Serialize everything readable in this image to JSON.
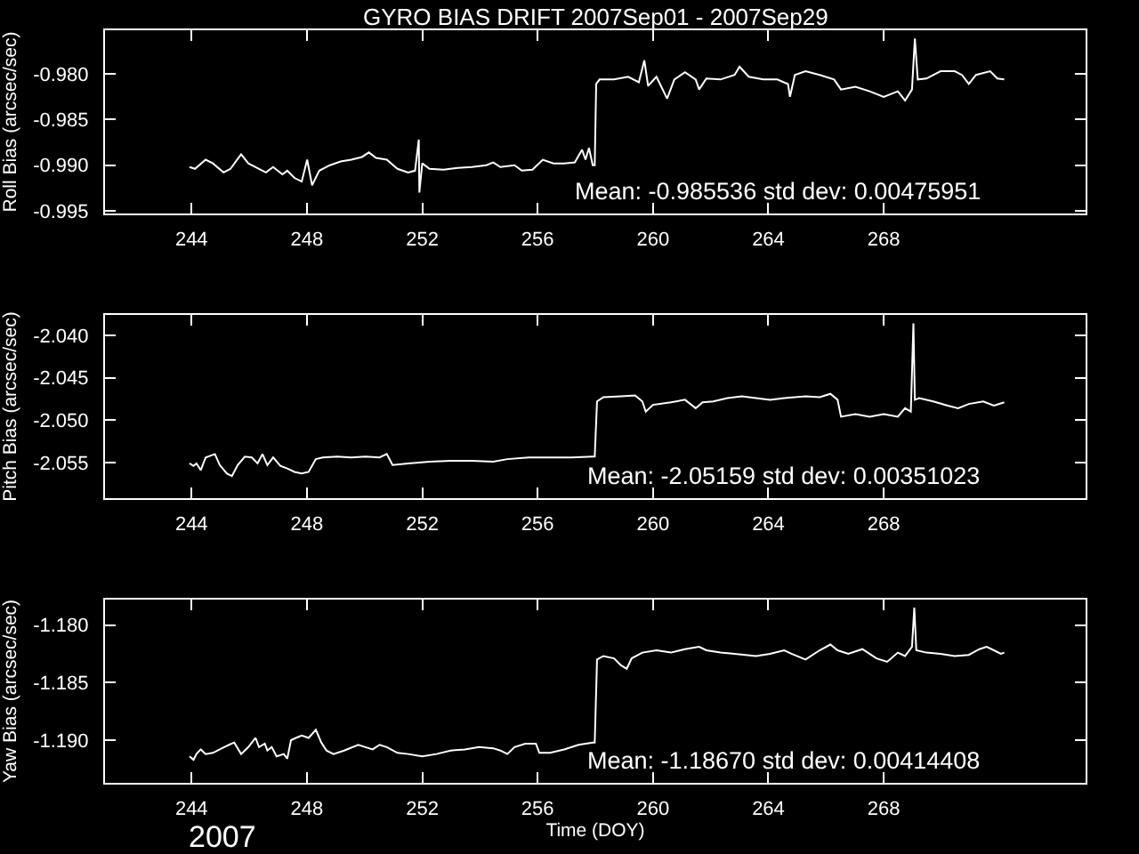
{
  "chart_data": [
    {
      "type": "line",
      "title": "GYRO BIAS DRIFT 2007Sep01 - 2007Sep29",
      "ylabel": "Roll Bias (arcsec/sec)",
      "x": [
        243.93,
        244.12,
        244.49,
        244.74,
        245.11,
        245.35,
        245.72,
        245.97,
        246.34,
        246.58,
        246.83,
        247.15,
        247.32,
        247.57,
        247.82,
        248.01,
        248.18,
        248.43,
        248.8,
        249.17,
        249.54,
        249.91,
        250.15,
        250.4,
        250.77,
        251.14,
        251.51,
        251.75,
        251.88,
        251.9,
        252.0,
        252.25,
        252.74,
        253.23,
        253.72,
        254.22,
        254.46,
        254.71,
        255.2,
        255.45,
        255.82,
        256.18,
        256.55,
        256.92,
        257.29,
        257.54,
        257.66,
        257.78,
        257.91,
        257.98,
        258.03,
        258.15,
        258.65,
        259.14,
        259.51,
        259.7,
        259.83,
        260.12,
        260.49,
        260.74,
        261.11,
        261.48,
        261.6,
        261.85,
        262.34,
        262.83,
        263.0,
        263.32,
        263.82,
        264.31,
        264.68,
        264.75,
        264.92,
        265.29,
        265.78,
        266.28,
        266.52,
        267.02,
        267.51,
        268.0,
        268.49,
        268.74,
        268.98,
        269.08,
        269.18,
        269.48,
        269.97,
        270.46,
        270.71,
        270.95,
        271.2,
        271.69,
        271.94,
        272.18
      ],
      "series": [
        {
          "color": "#ffffff",
          "values": [
            -0.9902,
            -0.9904,
            -0.9894,
            -0.9898,
            -0.9908,
            -0.9904,
            -0.9888,
            -0.9898,
            -0.9904,
            -0.9908,
            -0.9902,
            -0.991,
            -0.9906,
            -0.9914,
            -0.9918,
            -0.9894,
            -0.9922,
            -0.9906,
            -0.99,
            -0.9896,
            -0.9894,
            -0.9891,
            -0.9886,
            -0.9892,
            -0.9894,
            -0.9904,
            -0.9908,
            -0.9906,
            -0.9872,
            -0.993,
            -0.9898,
            -0.9904,
            -0.9905,
            -0.9903,
            -0.9902,
            -0.99,
            -0.9897,
            -0.9902,
            -0.99,
            -0.9906,
            -0.9905,
            -0.9894,
            -0.9898,
            -0.9898,
            -0.9897,
            -0.9883,
            -0.9894,
            -0.9881,
            -0.99,
            -0.99,
            -0.9811,
            -0.9806,
            -0.9806,
            -0.9803,
            -0.9809,
            -0.9785,
            -0.9813,
            -0.9803,
            -0.9827,
            -0.9806,
            -0.9798,
            -0.9806,
            -0.9817,
            -0.9805,
            -0.9806,
            -0.9801,
            -0.9792,
            -0.9803,
            -0.9806,
            -0.9806,
            -0.9811,
            -0.9825,
            -0.9801,
            -0.9797,
            -0.9801,
            -0.9806,
            -0.9817,
            -0.9814,
            -0.9819,
            -0.9825,
            -0.9819,
            -0.9829,
            -0.9817,
            -0.9761,
            -0.9806,
            -0.9805,
            -0.9797,
            -0.9797,
            -0.9801,
            -0.9811,
            -0.9801,
            -0.9797,
            -0.9805,
            -0.9806
          ]
        }
      ],
      "xlim": [
        241,
        275
      ],
      "xticks": [
        244,
        248,
        252,
        256,
        260,
        264,
        268
      ],
      "ylim": [
        -0.9953,
        -0.9752
      ],
      "yticks": [
        {
          "value": -0.995,
          "label": "-0.995"
        },
        {
          "value": -0.99,
          "label": "-0.990"
        },
        {
          "value": -0.985,
          "label": "-0.985"
        },
        {
          "value": -0.98,
          "label": "-0.980"
        }
      ],
      "annotations": [
        "Mean: -0.985536 std dev: 0.00475951"
      ]
    },
    {
      "type": "line",
      "ylabel": "Pitch Bias (arcsec/sec)",
      "x": [
        243.93,
        244.07,
        244.17,
        244.32,
        244.49,
        244.81,
        244.98,
        245.23,
        245.4,
        245.6,
        245.85,
        246.09,
        246.29,
        246.46,
        246.63,
        246.83,
        247.08,
        247.32,
        247.57,
        247.82,
        248.06,
        248.31,
        248.55,
        249.05,
        249.54,
        250.03,
        250.52,
        250.77,
        250.97,
        251.51,
        252.25,
        252.98,
        253.72,
        254.46,
        254.95,
        255.69,
        256.43,
        257.17,
        257.91,
        257.98,
        258.06,
        258.28,
        258.89,
        259.38,
        259.63,
        259.75,
        260.0,
        260.62,
        261.11,
        261.48,
        261.72,
        262.09,
        262.58,
        263.08,
        263.57,
        264.06,
        264.55,
        265.29,
        265.78,
        266.15,
        266.4,
        266.52,
        267.02,
        267.51,
        268.0,
        268.49,
        268.74,
        268.94,
        269.03,
        269.08,
        269.23,
        269.72,
        270.22,
        270.58,
        270.95,
        271.45,
        271.82,
        272.18
      ],
      "series": [
        {
          "color": "#ffffff",
          "values": [
            -2.0551,
            -2.0554,
            -2.0551,
            -2.0559,
            -2.0544,
            -2.054,
            -2.0553,
            -2.0563,
            -2.0566,
            -2.0553,
            -2.0543,
            -2.0544,
            -2.0551,
            -2.054,
            -2.0553,
            -2.0544,
            -2.0554,
            -2.0557,
            -2.0561,
            -2.0563,
            -2.0561,
            -2.0546,
            -2.0544,
            -2.0543,
            -2.0544,
            -2.0543,
            -2.0544,
            -2.054,
            -2.0553,
            -2.0551,
            -2.0549,
            -2.0548,
            -2.0548,
            -2.0549,
            -2.0546,
            -2.0544,
            -2.0544,
            -2.0544,
            -2.0543,
            -2.0543,
            -2.0478,
            -2.0473,
            -2.0472,
            -2.0471,
            -2.0478,
            -2.049,
            -2.0482,
            -2.0479,
            -2.0476,
            -2.0486,
            -2.0479,
            -2.0478,
            -2.0474,
            -2.0472,
            -2.0474,
            -2.0476,
            -2.0474,
            -2.0472,
            -2.0473,
            -2.0469,
            -2.0476,
            -2.0496,
            -2.0493,
            -2.0496,
            -2.0493,
            -2.0496,
            -2.0486,
            -2.049,
            -2.0386,
            -2.0476,
            -2.0474,
            -2.0478,
            -2.0483,
            -2.0486,
            -2.0481,
            -2.0478,
            -2.0483,
            -2.0479
          ]
        }
      ],
      "xlim": [
        241,
        275
      ],
      "xticks": [
        244,
        248,
        252,
        256,
        260,
        264,
        268
      ],
      "ylim": [
        -2.0592,
        -2.0376
      ],
      "yticks": [
        {
          "value": -2.055,
          "label": "-2.055"
        },
        {
          "value": -2.05,
          "label": "-2.050"
        },
        {
          "value": -2.045,
          "label": "-2.045"
        },
        {
          "value": -2.04,
          "label": "-2.040"
        }
      ],
      "annotations": [
        "Mean: -2.05159 std dev: 0.00351023"
      ]
    },
    {
      "type": "line",
      "ylabel": "Yaw Bias (arcsec/sec)",
      "xlabel": "Time (DOY)",
      "x": [
        243.93,
        244.07,
        244.17,
        244.32,
        244.49,
        244.74,
        244.98,
        245.3,
        245.48,
        245.72,
        245.97,
        246.22,
        246.34,
        246.54,
        246.63,
        246.78,
        246.95,
        247.2,
        247.32,
        247.45,
        247.62,
        247.82,
        248.06,
        248.31,
        248.5,
        248.68,
        248.92,
        249.29,
        249.78,
        250.03,
        250.28,
        250.52,
        250.77,
        251.14,
        251.51,
        252.0,
        252.49,
        252.98,
        253.48,
        253.97,
        254.46,
        254.71,
        254.95,
        255.2,
        255.57,
        255.94,
        256.06,
        256.43,
        256.92,
        257.42,
        257.91,
        257.98,
        258.06,
        258.28,
        258.65,
        258.89,
        259.09,
        259.26,
        259.63,
        260.12,
        260.62,
        261.11,
        261.6,
        261.85,
        262.34,
        262.83,
        263.57,
        264.06,
        264.55,
        264.8,
        265.29,
        265.78,
        266.15,
        266.4,
        266.77,
        267.26,
        267.75,
        268.12,
        268.49,
        268.74,
        268.98,
        269.06,
        269.13,
        269.48,
        269.97,
        270.46,
        270.95,
        271.32,
        271.57,
        271.82,
        272.06,
        272.18
      ],
      "series": [
        {
          "color": "#ffffff",
          "values": [
            -1.1914,
            -1.1917,
            -1.1912,
            -1.1908,
            -1.1912,
            -1.1911,
            -1.1908,
            -1.1904,
            -1.1902,
            -1.1912,
            -1.1906,
            -1.1898,
            -1.1906,
            -1.1903,
            -1.1909,
            -1.1906,
            -1.1914,
            -1.1912,
            -1.1916,
            -1.19,
            -1.1898,
            -1.1896,
            -1.1898,
            -1.1891,
            -1.1902,
            -1.1909,
            -1.1912,
            -1.1909,
            -1.1904,
            -1.1906,
            -1.1908,
            -1.1904,
            -1.1906,
            -1.1911,
            -1.1912,
            -1.1914,
            -1.1912,
            -1.1909,
            -1.1908,
            -1.1906,
            -1.1907,
            -1.1909,
            -1.1912,
            -1.1906,
            -1.1903,
            -1.1903,
            -1.1911,
            -1.1911,
            -1.1908,
            -1.1904,
            -1.1902,
            -1.1902,
            -1.183,
            -1.1827,
            -1.1829,
            -1.1835,
            -1.1838,
            -1.1829,
            -1.1824,
            -1.1822,
            -1.1824,
            -1.1821,
            -1.1819,
            -1.1822,
            -1.1824,
            -1.1825,
            -1.1827,
            -1.1825,
            -1.1822,
            -1.1825,
            -1.183,
            -1.1822,
            -1.1817,
            -1.1822,
            -1.1825,
            -1.1821,
            -1.1829,
            -1.1832,
            -1.1824,
            -1.1827,
            -1.1819,
            -1.1785,
            -1.1822,
            -1.1824,
            -1.1825,
            -1.1827,
            -1.1826,
            -1.1821,
            -1.1819,
            -1.1822,
            -1.1825,
            -1.1824
          ]
        }
      ],
      "xlim": [
        241,
        275
      ],
      "xticks": [
        244,
        248,
        252,
        256,
        260,
        264,
        268
      ],
      "ylim": [
        -1.1937,
        -1.1778
      ],
      "yticks": [
        {
          "value": -1.19,
          "label": "-1.190"
        },
        {
          "value": -1.185,
          "label": "-1.185"
        },
        {
          "value": -1.18,
          "label": "-1.180"
        }
      ],
      "annotations": [
        "Mean: -1.18670 std dev: 0.00414408",
        "2007"
      ]
    }
  ]
}
